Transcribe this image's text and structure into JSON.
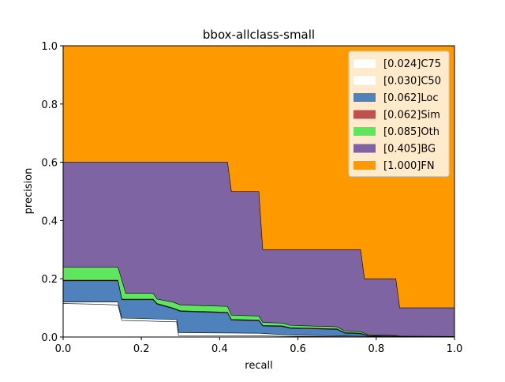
{
  "chart_data": {
    "type": "area",
    "title": "bbox-allclass-small",
    "xlabel": "recall",
    "ylabel": "precision",
    "xlim": [
      0.0,
      1.0
    ],
    "ylim": [
      0.0,
      1.0
    ],
    "xticks": [
      "0.0",
      "0.2",
      "0.4",
      "0.6",
      "0.8",
      "1.0"
    ],
    "yticks": [
      "0.0",
      "0.2",
      "0.4",
      "0.6",
      "0.8",
      "1.0"
    ],
    "grid": false,
    "legend_position": "top-right",
    "series": [
      {
        "name": "[1.000]FN",
        "color": "#ff9900",
        "points": [
          [
            0.0,
            1.0
          ],
          [
            1.0,
            1.0
          ]
        ]
      },
      {
        "name": "[0.405]BG",
        "color": "#7f64a3",
        "points": [
          [
            0.0,
            0.6
          ],
          [
            0.42,
            0.6
          ],
          [
            0.43,
            0.5
          ],
          [
            0.5,
            0.5
          ],
          [
            0.51,
            0.3
          ],
          [
            0.76,
            0.3
          ],
          [
            0.77,
            0.2
          ],
          [
            0.85,
            0.2
          ],
          [
            0.86,
            0.1
          ],
          [
            1.0,
            0.1
          ]
        ]
      },
      {
        "name": "[0.085]Oth",
        "color": "#5ee65e",
        "points": [
          [
            0.0,
            0.24
          ],
          [
            0.14,
            0.24
          ],
          [
            0.16,
            0.15
          ],
          [
            0.23,
            0.15
          ],
          [
            0.24,
            0.13
          ],
          [
            0.28,
            0.12
          ],
          [
            0.3,
            0.11
          ],
          [
            0.42,
            0.105
          ],
          [
            0.43,
            0.075
          ],
          [
            0.5,
            0.072
          ],
          [
            0.51,
            0.05
          ],
          [
            0.56,
            0.048
          ],
          [
            0.58,
            0.04
          ],
          [
            0.7,
            0.035
          ],
          [
            0.72,
            0.02
          ],
          [
            0.76,
            0.018
          ],
          [
            0.78,
            0.008
          ],
          [
            0.85,
            0.005
          ],
          [
            0.86,
            0.003
          ],
          [
            1.0,
            0.002
          ]
        ]
      },
      {
        "name": "[0.062]Sim",
        "color": "#c0504d",
        "points": [
          [
            0.0,
            0.195
          ],
          [
            0.14,
            0.195
          ],
          [
            0.15,
            0.13
          ],
          [
            0.23,
            0.13
          ],
          [
            0.24,
            0.115
          ],
          [
            0.28,
            0.1
          ],
          [
            0.3,
            0.09
          ],
          [
            0.42,
            0.085
          ],
          [
            0.43,
            0.06
          ],
          [
            0.5,
            0.058
          ],
          [
            0.51,
            0.04
          ],
          [
            0.56,
            0.038
          ],
          [
            0.58,
            0.032
          ],
          [
            0.7,
            0.028
          ],
          [
            0.72,
            0.015
          ],
          [
            0.76,
            0.013
          ],
          [
            0.78,
            0.005
          ],
          [
            0.85,
            0.003
          ],
          [
            0.86,
            0.002
          ],
          [
            1.0,
            0.001
          ]
        ]
      },
      {
        "name": "[0.062]Loc",
        "color": "#4f81bd",
        "points": [
          [
            0.0,
            0.193
          ],
          [
            0.14,
            0.193
          ],
          [
            0.15,
            0.128
          ],
          [
            0.23,
            0.128
          ],
          [
            0.24,
            0.113
          ],
          [
            0.28,
            0.098
          ],
          [
            0.3,
            0.088
          ],
          [
            0.42,
            0.083
          ],
          [
            0.43,
            0.058
          ],
          [
            0.5,
            0.056
          ],
          [
            0.51,
            0.038
          ],
          [
            0.56,
            0.036
          ],
          [
            0.58,
            0.03
          ],
          [
            0.7,
            0.026
          ],
          [
            0.72,
            0.013
          ],
          [
            0.76,
            0.011
          ],
          [
            0.78,
            0.004
          ],
          [
            0.85,
            0.002
          ],
          [
            0.86,
            0.001
          ],
          [
            1.0,
            0.0
          ]
        ]
      },
      {
        "name": "[0.030]C50",
        "color": "#ffffff",
        "points": [
          [
            0.0,
            0.12
          ],
          [
            0.14,
            0.12
          ],
          [
            0.15,
            0.065
          ],
          [
            0.29,
            0.06
          ],
          [
            0.295,
            0.015
          ],
          [
            0.5,
            0.013
          ],
          [
            0.55,
            0.009
          ],
          [
            0.6,
            0.006
          ],
          [
            0.7,
            0.004
          ],
          [
            0.8,
            0.002
          ],
          [
            1.0,
            0.0
          ]
        ]
      },
      {
        "name": "[0.024]C75",
        "color": "#ffffff",
        "points": [
          [
            0.0,
            0.115
          ],
          [
            0.08,
            0.113
          ],
          [
            0.14,
            0.11
          ],
          [
            0.15,
            0.057
          ],
          [
            0.29,
            0.052
          ],
          [
            0.295,
            0.005
          ],
          [
            0.5,
            0.004
          ],
          [
            0.6,
            0.002
          ],
          [
            1.0,
            0.0
          ]
        ]
      }
    ],
    "legend_order": [
      "[0.024]C75",
      "[0.030]C50",
      "[0.062]Loc",
      "[0.062]Sim",
      "[0.085]Oth",
      "[0.405]BG",
      "[1.000]FN"
    ]
  }
}
